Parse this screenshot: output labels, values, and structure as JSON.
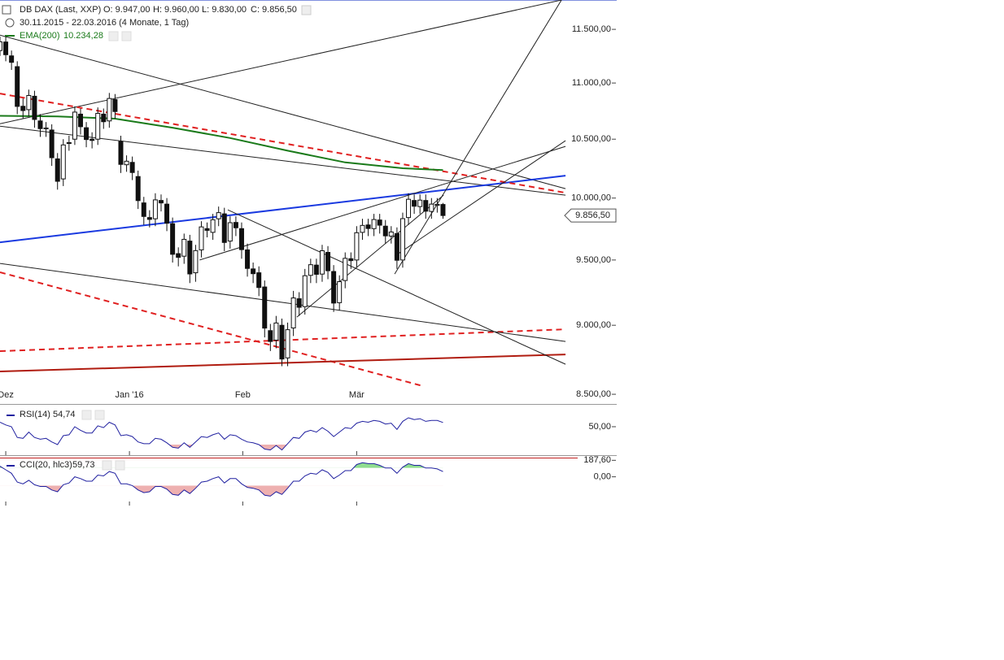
{
  "header": {
    "symbol": "DB DAX (Last, XXP)",
    "open": "O: 9.947,00",
    "high": "H: 9.960,00",
    "low": "L: 9.830,00",
    "close": "C: 9.856,50",
    "range": "30.11.2015 - 22.03.2016 (4 Monate, 1 Tag)"
  },
  "chart_data": [
    {
      "type": "candlestick",
      "log": true,
      "x": [
        0,
        1,
        2,
        3,
        4,
        5,
        6,
        7,
        8,
        9,
        10,
        11,
        12,
        13,
        14,
        15,
        16,
        17,
        18,
        19,
        20,
        21,
        22,
        23,
        24,
        25,
        26,
        27,
        28,
        29,
        30,
        31,
        32,
        33,
        34,
        35,
        36,
        37,
        38,
        39,
        40,
        41,
        42,
        43,
        44,
        45,
        46,
        47,
        48,
        49,
        50,
        51,
        52,
        53,
        54,
        55,
        56,
        57,
        58,
        59,
        60,
        61,
        62,
        63,
        64,
        65,
        66,
        67,
        68,
        69,
        70,
        71,
        72,
        73,
        74,
        75,
        76,
        77
      ],
      "open": [
        11300,
        11380,
        11250,
        11150,
        10790,
        10760,
        10880,
        10660,
        10590,
        10580,
        10330,
        10160,
        10470,
        10500,
        10720,
        10600,
        10500,
        10500,
        10720,
        10660,
        10850,
        10480,
        10280,
        10300,
        10180,
        9960,
        9840,
        9830,
        9980,
        9950,
        9790,
        9550,
        9530,
        9650,
        9400,
        9580,
        9750,
        9720,
        9830,
        9870,
        9650,
        9800,
        9750,
        9580,
        9430,
        9400,
        9290,
        8960,
        8890,
        9000,
        8760,
        8980,
        9200,
        9140,
        9380,
        9460,
        9390,
        9560,
        9410,
        9170,
        9340,
        9510,
        9500,
        9720,
        9780,
        9750,
        9820,
        9770,
        9690,
        9710,
        9500,
        9840,
        9980,
        9930,
        9980,
        9890,
        9940,
        9947
      ],
      "high": [
        11430,
        11430,
        11300,
        11200,
        10860,
        10940,
        10930,
        10720,
        10650,
        10630,
        10380,
        10500,
        10530,
        10790,
        10770,
        10650,
        10560,
        10780,
        10770,
        10910,
        10900,
        10530,
        10360,
        10350,
        10230,
        10010,
        9900,
        10040,
        10030,
        10000,
        9840,
        9600,
        9710,
        9700,
        9620,
        9810,
        9800,
        9870,
        9930,
        9920,
        9850,
        9850,
        9800,
        9630,
        9480,
        9450,
        9340,
        9010,
        9070,
        9050,
        9020,
        9260,
        9250,
        9430,
        9510,
        9510,
        9620,
        9610,
        9460,
        9380,
        9560,
        9560,
        9770,
        9830,
        9830,
        9870,
        9870,
        9820,
        9770,
        9760,
        9880,
        10040,
        10030,
        10030,
        10030,
        10000,
        10000,
        9960
      ],
      "low": [
        11250,
        11200,
        11120,
        10720,
        10680,
        10700,
        10600,
        10520,
        10520,
        10270,
        10070,
        10100,
        10400,
        10450,
        10540,
        10430,
        10420,
        10450,
        10590,
        10600,
        10680,
        10210,
        10220,
        10150,
        9910,
        9780,
        9760,
        9770,
        9890,
        9730,
        9480,
        9450,
        9470,
        9320,
        9330,
        9520,
        9680,
        9660,
        9770,
        9570,
        9590,
        9690,
        9510,
        9370,
        9320,
        9220,
        8910,
        8810,
        8830,
        8700,
        8700,
        8920,
        9070,
        9080,
        9320,
        9320,
        9330,
        9350,
        9100,
        9110,
        9280,
        9430,
        9440,
        9660,
        9690,
        9690,
        9710,
        9630,
        9630,
        9430,
        9440,
        9780,
        9870,
        9870,
        9830,
        9830,
        9880,
        9830
      ],
      "close": [
        11382,
        11261,
        11190,
        10789,
        10752,
        10887,
        10673,
        10592,
        10598,
        10340,
        10140,
        10450,
        10469,
        10738,
        10609,
        10497,
        10489,
        10727,
        10653,
        10860,
        10743,
        10283,
        10310,
        10214,
        9979,
        9849,
        9825,
        9985,
        9960,
        9794,
        9545,
        9521,
        9664,
        9391,
        9574,
        9764,
        9736,
        9822,
        9880,
        9639,
        9798,
        9757,
        9582,
        9434,
        9393,
        9286,
        8979,
        8880,
        9017,
        8752,
        8967,
        9206,
        9135,
        9377,
        9463,
        9388,
        9573,
        9416,
        9167,
        9331,
        9513,
        9495,
        9717,
        9776,
        9751,
        9824,
        9778,
        9692,
        9723,
        9498,
        9831,
        9990,
        9933,
        9983,
        9892,
        9950,
        9948,
        9856.5
      ],
      "last_label": "9.856,50",
      "xlim": [
        0,
        107.2
      ],
      "xticks": [
        {
          "value": 1,
          "label": "Dez"
        },
        {
          "value": 22.5,
          "label": "Jan '16"
        },
        {
          "value": 42.2,
          "label": "Feb"
        },
        {
          "value": 62,
          "label": "Mär"
        }
      ],
      "ylim": [
        8432,
        11783
      ],
      "yticks": [
        {
          "value": 8500,
          "label": "8.500,00"
        },
        {
          "value": 9000,
          "label": "9.000,00"
        },
        {
          "value": 9500,
          "label": "9.500,00"
        },
        {
          "value": 10000,
          "label": "10.000,00"
        },
        {
          "value": 10500,
          "label": "10.500,00"
        },
        {
          "value": 11000,
          "label": "11.000,00"
        },
        {
          "value": 11500,
          "label": "11.500,00"
        }
      ],
      "lines": [
        {
          "name": "EMA(200)",
          "last_value_label": "10.234,28",
          "color": "#1a7a1a",
          "x": [
            0,
            10,
            20,
            30,
            40,
            50,
            60,
            70,
            77
          ],
          "values": [
            10705,
            10700,
            10680,
            10600,
            10510,
            10400,
            10300,
            10250,
            10234.28
          ]
        }
      ],
      "trendlines": [
        {
          "color": "#222222",
          "width": 1,
          "dash": false,
          "x": [
            0,
            97.6
          ],
          "values": [
            10635,
            11783
          ]
        },
        {
          "color": "#222222",
          "width": 1,
          "dash": false,
          "x": [
            0,
            98.3
          ],
          "values": [
            11445,
            10078
          ]
        },
        {
          "color": "#222222",
          "width": 1,
          "dash": false,
          "x": [
            0,
            98.3
          ],
          "values": [
            10614,
            10024
          ]
        },
        {
          "color": "#1a3ae0",
          "width": 2,
          "dash": false,
          "x": [
            0,
            98.3
          ],
          "values": [
            9640,
            10187
          ]
        },
        {
          "color": "#e02020",
          "width": 2,
          "dash": true,
          "x": [
            0,
            98.3
          ],
          "values": [
            10904,
            10044
          ]
        },
        {
          "color": "#e02020",
          "width": 2,
          "dash": true,
          "x": [
            0,
            73.6
          ],
          "values": [
            9404,
            8557
          ]
        },
        {
          "color": "#e02020",
          "width": 2,
          "dash": true,
          "x": [
            0,
            98.3
          ],
          "values": [
            8809,
            8970
          ]
        },
        {
          "color": "#b01c10",
          "width": 2,
          "dash": false,
          "x": [
            0,
            98.3
          ],
          "values": [
            8662,
            8785
          ]
        },
        {
          "color": "#222222",
          "width": 1,
          "dash": false,
          "x": [
            0,
            98.3
          ],
          "values": [
            9473,
            8880
          ]
        },
        {
          "color": "#222222",
          "width": 1,
          "dash": false,
          "x": [
            39.6,
            98.3
          ],
          "values": [
            9903,
            8714
          ]
        },
        {
          "color": "#222222",
          "width": 1,
          "dash": false,
          "x": [
            34.7,
            98.3
          ],
          "values": [
            9500,
            10437
          ]
        },
        {
          "color": "#222222",
          "width": 1,
          "dash": false,
          "x": [
            51.6,
            77.1
          ],
          "values": [
            9061,
            10024
          ]
        },
        {
          "color": "#222222",
          "width": 1,
          "dash": false,
          "x": [
            68.6,
            97.6
          ],
          "values": [
            9390,
            11783
          ]
        },
        {
          "color": "#222222",
          "width": 1,
          "dash": false,
          "x": [
            68.6,
            98.3
          ],
          "values": [
            9530,
            10487
          ]
        }
      ]
    },
    {
      "type": "line",
      "name": "RSI(14)",
      "last_value_label": "54,74",
      "color": "#2020a0",
      "x": [
        0,
        1,
        2,
        3,
        4,
        5,
        6,
        7,
        8,
        9,
        10,
        11,
        12,
        13,
        14,
        15,
        16,
        17,
        18,
        19,
        20,
        21,
        22,
        23,
        24,
        25,
        26,
        27,
        28,
        29,
        30,
        31,
        32,
        33,
        34,
        35,
        36,
        37,
        38,
        39,
        40,
        41,
        42,
        43,
        44,
        45,
        46,
        47,
        48,
        49,
        50,
        51,
        52,
        53,
        54,
        55,
        56,
        57,
        58,
        59,
        60,
        61,
        62,
        63,
        64,
        65,
        66,
        67,
        68,
        69,
        70,
        71,
        72,
        73,
        74,
        75,
        76,
        77
      ],
      "values": [
        55,
        52,
        50,
        38,
        37,
        44,
        38,
        36,
        37,
        33,
        30,
        40,
        41,
        50,
        46,
        43,
        43,
        51,
        49,
        55,
        52,
        40,
        41,
        39,
        33,
        31,
        31,
        37,
        36,
        32,
        27,
        26,
        32,
        27,
        33,
        39,
        38,
        41,
        43,
        36,
        41,
        40,
        36,
        33,
        32,
        30,
        25,
        24,
        29,
        24,
        31,
        38,
        37,
        44,
        46,
        44,
        49,
        45,
        39,
        44,
        49,
        48,
        54,
        56,
        55,
        57,
        56,
        53,
        54,
        47,
        56,
        60,
        58,
        59,
        56,
        57,
        57,
        54.74
      ],
      "xlim": [
        0,
        107.2
      ],
      "ylim": [
        18.2,
        74.5
      ],
      "yticks": [
        {
          "value": 50,
          "label": "50,00"
        }
      ],
      "bands": [
        {
          "value": 30,
          "side": "below",
          "color": "#eeb0b0"
        }
      ]
    },
    {
      "type": "line",
      "name": "CCI(20, hlc3)",
      "last_value_label": "59,73",
      "color": "#2020a0",
      "x": [
        0,
        1,
        2,
        3,
        4,
        5,
        6,
        7,
        8,
        9,
        10,
        11,
        12,
        13,
        14,
        15,
        16,
        17,
        18,
        19,
        20,
        21,
        22,
        23,
        24,
        25,
        26,
        27,
        28,
        29,
        30,
        31,
        32,
        33,
        34,
        35,
        36,
        37,
        38,
        39,
        40,
        41,
        42,
        43,
        44,
        45,
        46,
        47,
        48,
        49,
        50,
        51,
        52,
        53,
        54,
        55,
        56,
        57,
        58,
        59,
        60,
        61,
        62,
        63,
        64,
        65,
        66,
        67,
        68,
        69,
        70,
        71,
        72,
        73,
        74,
        75,
        76,
        77
      ],
      "values": [
        120,
        80,
        40,
        -60,
        -80,
        -40,
        -90,
        -110,
        -110,
        -150,
        -170,
        -90,
        -70,
        0,
        -20,
        -50,
        -50,
        20,
        10,
        60,
        40,
        -80,
        -80,
        -100,
        -150,
        -180,
        -170,
        -110,
        -110,
        -140,
        -200,
        -210,
        -150,
        -190,
        -130,
        -60,
        -50,
        -20,
        0,
        -70,
        -20,
        -20,
        -80,
        -120,
        -130,
        -150,
        -210,
        -220,
        -170,
        -200,
        -130,
        -50,
        -50,
        10,
        40,
        30,
        80,
        50,
        -20,
        20,
        70,
        70,
        140,
        160,
        150,
        150,
        130,
        100,
        100,
        40,
        110,
        150,
        130,
        130,
        100,
        100,
        90,
        59.73
      ],
      "xlim": [
        0,
        107.2
      ],
      "ylim": [
        -327,
        209
      ],
      "yticks": [
        {
          "value": 187.6,
          "label": "187,60"
        },
        {
          "value": 0,
          "label": "0,00"
        }
      ],
      "bands": [
        {
          "value": 100,
          "side": "above",
          "color": "#8fdc8f"
        },
        {
          "value": -100,
          "side": "below",
          "color": "#eeb0b0"
        }
      ]
    }
  ]
}
